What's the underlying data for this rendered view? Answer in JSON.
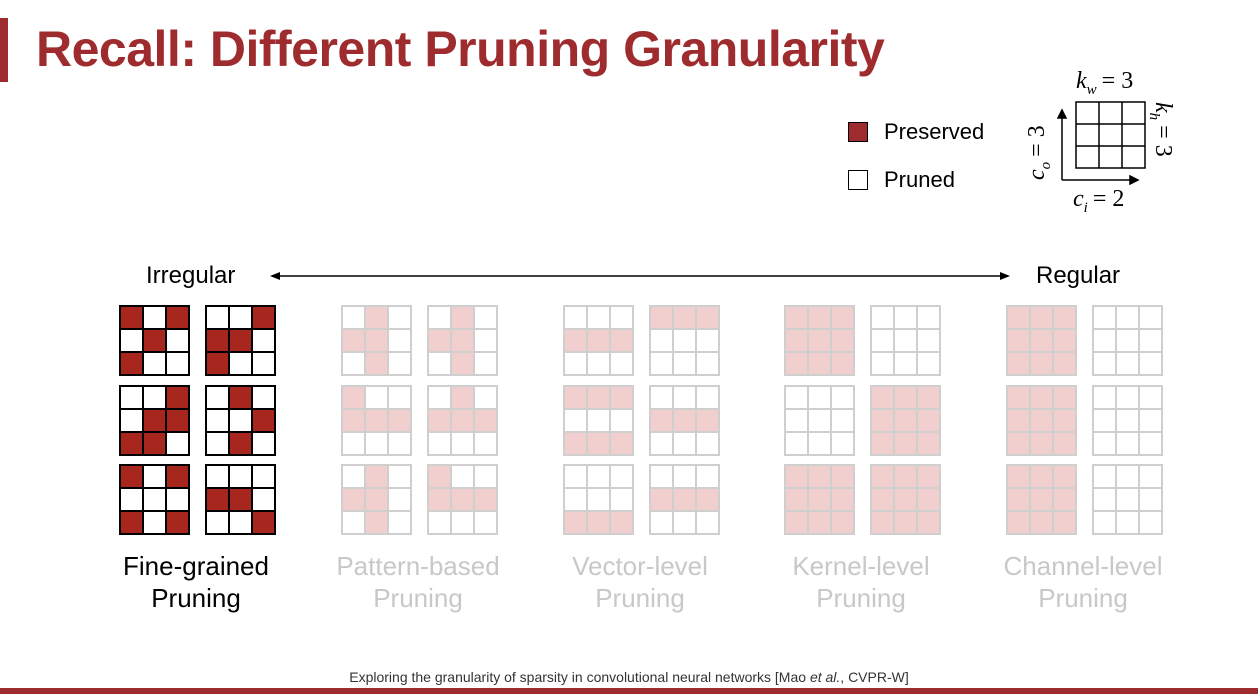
{
  "title": "Recall: Different Pruning Granularity",
  "legend": {
    "preserved": "Preserved",
    "pruned": "Pruned"
  },
  "kernel_diagram": {
    "kw": "k",
    "kw_sub": "w",
    "kh": "k",
    "kh_sub": "h",
    "ci": "c",
    "ci_sub": "i",
    "co": "c",
    "co_sub": "o",
    "eq3": "= 3",
    "eq2": "= 2"
  },
  "axis": {
    "left": "Irregular",
    "right": "Regular"
  },
  "colors": {
    "accent": "#9e2b2e",
    "preserved_cell": "#a7271f",
    "faded_cell": "#f1cfcf",
    "faded_line": "#cfcfcf"
  },
  "columns": [
    {
      "line1": "Fine-grained",
      "line2": "Pruning",
      "active": true,
      "grids": [
        [
          "101",
          "010",
          "100"
        ],
        [
          "001",
          "110",
          "100"
        ],
        [
          "001",
          "011",
          "110"
        ],
        [
          "010",
          "001",
          "010"
        ],
        [
          "101",
          "000",
          "101"
        ],
        [
          "000",
          "110",
          "001"
        ]
      ]
    },
    {
      "line1": "Pattern-based",
      "line2": "Pruning",
      "active": false,
      "grids": [
        [
          "010",
          "110",
          "010"
        ],
        [
          "010",
          "110",
          "010"
        ],
        [
          "100",
          "111",
          "000"
        ],
        [
          "010",
          "111",
          "000"
        ],
        [
          "010",
          "110",
          "010"
        ],
        [
          "100",
          "111",
          "000"
        ]
      ]
    },
    {
      "line1": "Vector-level",
      "line2": "Pruning",
      "active": false,
      "grids": [
        [
          "000",
          "111",
          "000"
        ],
        [
          "111",
          "000",
          "000"
        ],
        [
          "111",
          "000",
          "111"
        ],
        [
          "000",
          "111",
          "000"
        ],
        [
          "000",
          "000",
          "111"
        ],
        [
          "000",
          "111",
          "000"
        ]
      ]
    },
    {
      "line1": "Kernel-level",
      "line2": "Pruning",
      "active": false,
      "grids": [
        [
          "111",
          "111",
          "111"
        ],
        [
          "000",
          "000",
          "000"
        ],
        [
          "000",
          "000",
          "000"
        ],
        [
          "111",
          "111",
          "111"
        ],
        [
          "111",
          "111",
          "111"
        ],
        [
          "111",
          "111",
          "111"
        ]
      ]
    },
    {
      "line1": "Channel-level",
      "line2": "Pruning",
      "active": false,
      "grids": [
        [
          "111",
          "111",
          "111"
        ],
        [
          "000",
          "000",
          "000"
        ],
        [
          "111",
          "111",
          "111"
        ],
        [
          "000",
          "000",
          "000"
        ],
        [
          "111",
          "111",
          "111"
        ],
        [
          "000",
          "000",
          "000"
        ]
      ]
    }
  ],
  "footer": {
    "pre": "Exploring the granularity of sparsity in convolutional neural networks [Mao ",
    "etal": "et al.",
    "post": ", CVPR-W]"
  }
}
